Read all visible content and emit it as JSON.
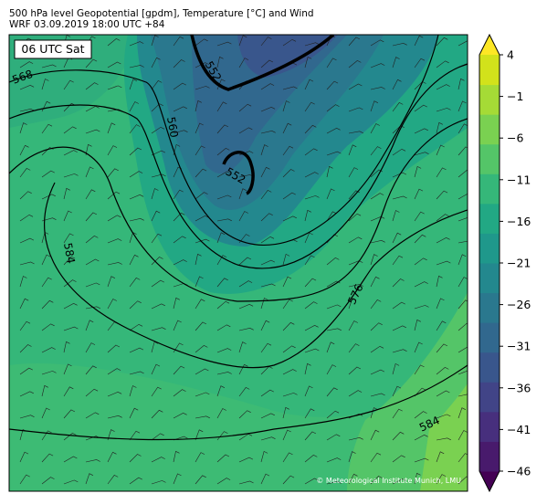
{
  "header": {
    "title_line1": "500 hPa level Geopotential [gpdm], Temperature [°C] and Wind",
    "title_line2": "WRF 03.09.2019 18:00 UTC +84"
  },
  "map": {
    "time_label": "06 UTC Sat",
    "copyright": "© Meteorological Institute Munich, LMU",
    "contour_labels": [
      568,
      560,
      552,
      552,
      584,
      576,
      584
    ]
  },
  "colorbar": {
    "ticks": [
      4,
      {
        "value": -1,
        "label": "−1"
      },
      {
        "value": -6,
        "label": "−6"
      },
      {
        "value": -11,
        "label": "−11"
      },
      {
        "value": -16,
        "label": "−16"
      },
      {
        "value": -21,
        "label": "−21"
      },
      {
        "value": -26,
        "label": "−26"
      },
      {
        "value": -31,
        "label": "−31"
      },
      {
        "value": -36,
        "label": "−36"
      },
      {
        "value": -41,
        "label": "−41"
      },
      {
        "value": -46,
        "label": "−46"
      }
    ],
    "colors": [
      "#440154",
      "#481a6c",
      "#472f7d",
      "#414487",
      "#39568c",
      "#31688e",
      "#2a788e",
      "#23888e",
      "#1f988b",
      "#22a884",
      "#35b779",
      "#54c568",
      "#7ad151",
      "#a5db36",
      "#d2e21b",
      "#fde725"
    ]
  }
}
